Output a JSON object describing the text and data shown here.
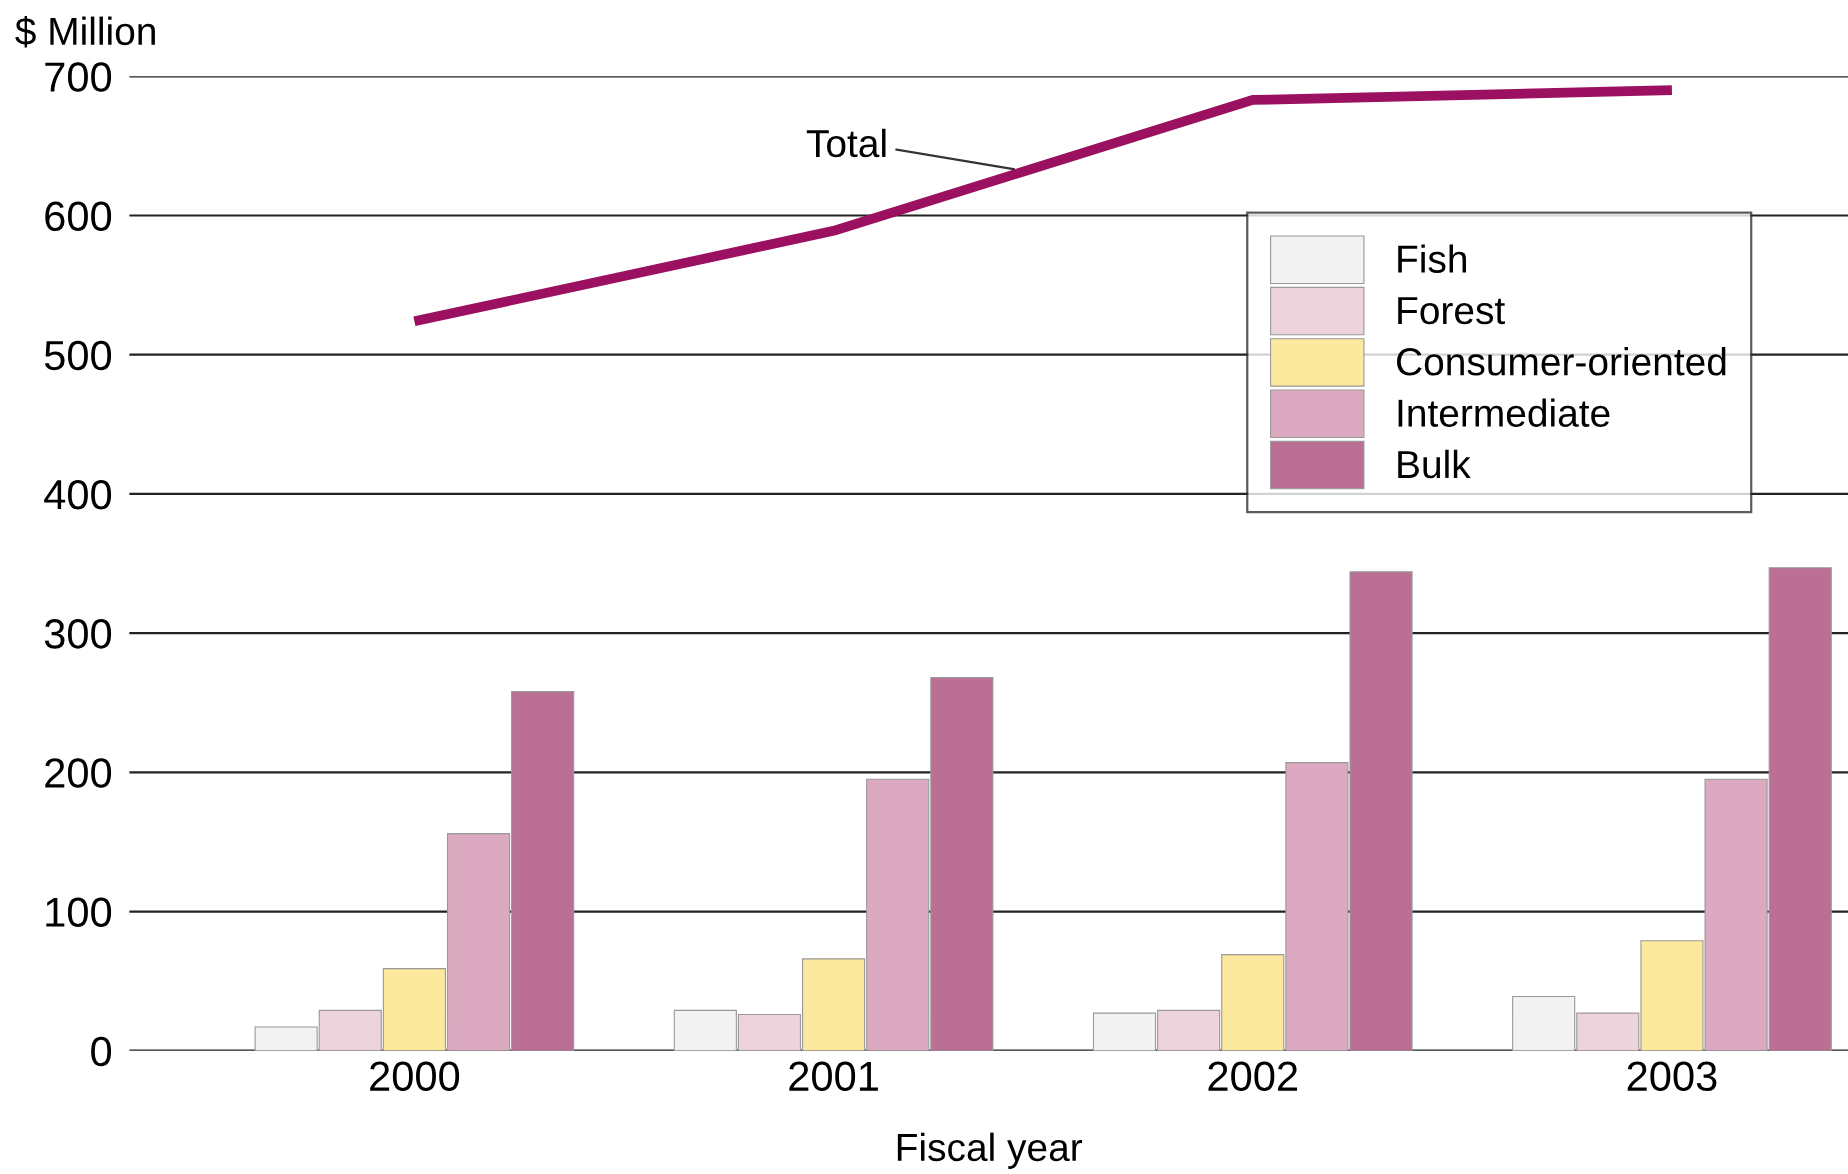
{
  "chart_data": {
    "type": "bar",
    "ylabel": "$ Million",
    "xlabel": "Fiscal year",
    "categories": [
      "2000",
      "2001",
      "2002",
      "2003"
    ],
    "series": [
      {
        "name": "Fish",
        "color": "#f2f2f2",
        "values": [
          17,
          29,
          27,
          39
        ]
      },
      {
        "name": "Forest",
        "color": "#ecd3dc",
        "values": [
          29,
          26,
          29,
          27
        ]
      },
      {
        "name": "Consumer-oriented",
        "color": "#fde99d",
        "values": [
          59,
          66,
          69,
          79
        ]
      },
      {
        "name": "Intermediate",
        "color": "#dcaac0",
        "values": [
          156,
          195,
          207,
          195
        ]
      },
      {
        "name": "Bulk",
        "color": "#bb6f94",
        "values": [
          258,
          268,
          344,
          347
        ]
      },
      {
        "name": "Total",
        "type": "line",
        "color": "#9b1060",
        "values": [
          524,
          589,
          683,
          690
        ]
      }
    ],
    "ylim": [
      0,
      700
    ],
    "yticks": [
      0,
      100,
      200,
      300,
      400,
      500,
      600,
      700
    ],
    "grid": "y",
    "legend": "top right"
  }
}
